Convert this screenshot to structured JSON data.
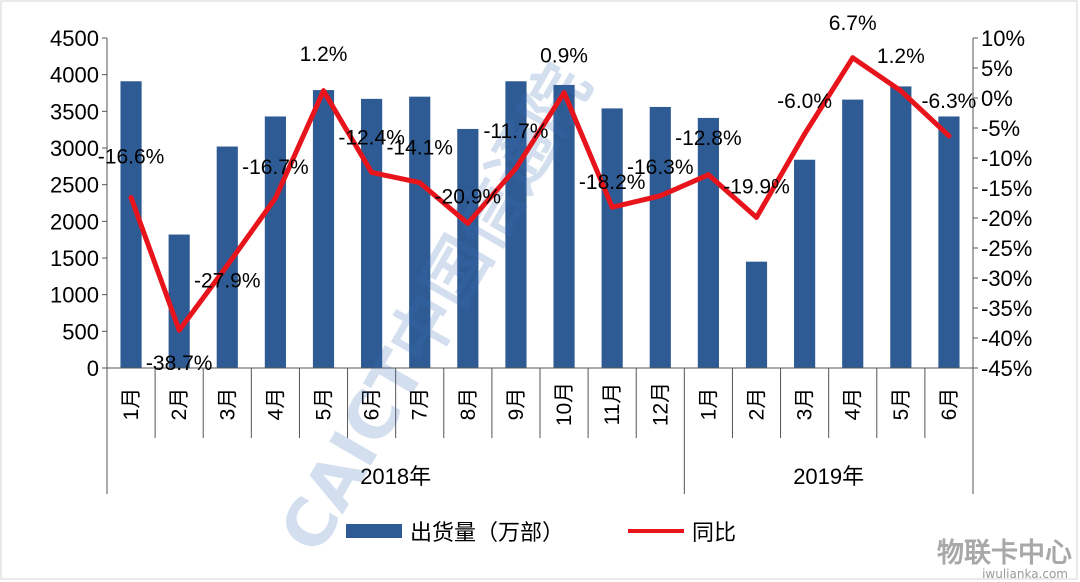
{
  "chart_data": {
    "type": "bar",
    "categories": [
      "1月",
      "2月",
      "3月",
      "4月",
      "5月",
      "6月",
      "7月",
      "8月",
      "9月",
      "10月",
      "11月",
      "12月",
      "1月",
      "2月",
      "3月",
      "4月",
      "5月",
      "6月"
    ],
    "groups": [
      {
        "label": "2018年",
        "count": 12
      },
      {
        "label": "2019年",
        "count": 6
      }
    ],
    "series": [
      {
        "name": "出货量（万部）",
        "type": "bar",
        "axis": "left",
        "color": "#2e5b94",
        "values": [
          3910,
          1820,
          3020,
          3430,
          3790,
          3670,
          3700,
          3260,
          3910,
          3860,
          3540,
          3560,
          3410,
          1450,
          2840,
          3660,
          3840,
          3430
        ]
      },
      {
        "name": "同比",
        "type": "line",
        "axis": "right",
        "color": "#e8141c",
        "values": [
          -16.6,
          -38.7,
          -27.9,
          -16.7,
          1.2,
          -12.4,
          -14.1,
          -20.9,
          -11.7,
          0.9,
          -18.2,
          -16.3,
          -12.8,
          -19.9,
          -6.0,
          6.7,
          1.2,
          -6.3
        ],
        "labels": [
          "-16.6%",
          "-38.7%",
          "-27.9%",
          "-16.7%",
          "1.2%",
          "-12.4%",
          "-14.1%",
          "-20.9%",
          "-11.7%",
          "0.9%",
          "-18.2%",
          "-16.3%",
          "-12.8%",
          "-19.9%",
          "-6.0%",
          "6.7%",
          "1.2%",
          "-6.3%"
        ]
      }
    ],
    "left_axis": {
      "ylim": [
        0,
        4500
      ],
      "ticks": [
        "0",
        "500",
        "1000",
        "1500",
        "2000",
        "2500",
        "3000",
        "3500",
        "4000",
        "4500"
      ]
    },
    "right_axis": {
      "ylim": [
        -45,
        10
      ],
      "ticks": [
        "10%",
        "5%",
        "0%",
        "-5%",
        "-10%",
        "-15%",
        "-20%",
        "-25%",
        "-30%",
        "-35%",
        "-40%",
        "-45%"
      ]
    },
    "legend_placement": "bottom-center",
    "grid": false
  },
  "watermark": {
    "main": "CAICT中国信通院",
    "corner_main": "物联卡中心",
    "corner_sub": "iwulianka.com"
  }
}
